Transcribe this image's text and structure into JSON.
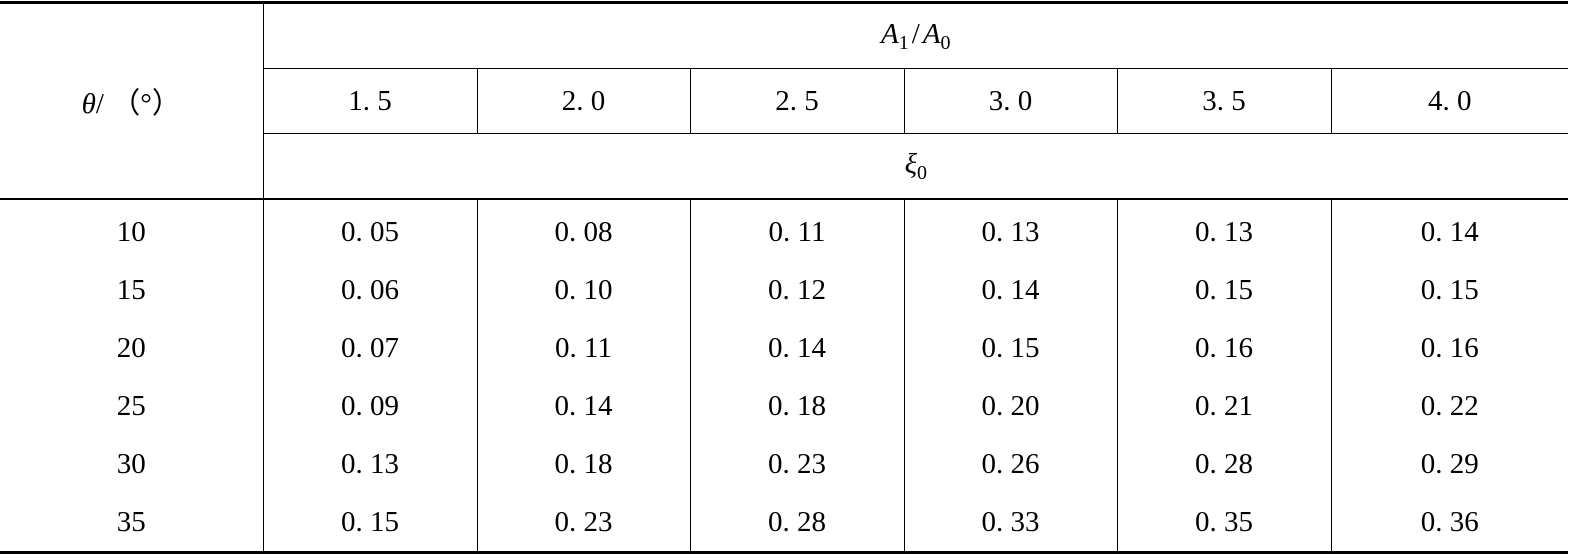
{
  "table": {
    "row_header": {
      "symbol": "θ",
      "unit": "/ （°）"
    },
    "group_header": {
      "numerator_symbol": "A",
      "numerator_sub": "1",
      "slash": "/",
      "denominator_symbol": "A",
      "denominator_sub": "0"
    },
    "ratio_values": [
      "1. 5",
      "2. 0",
      "2. 5",
      "3. 0",
      "3. 5",
      "4. 0"
    ],
    "coefficient_header": {
      "symbol": "ξ",
      "sub": "0"
    },
    "rows": [
      {
        "theta": "10",
        "values": [
          "0. 05",
          "0. 08",
          "0. 11",
          "0. 13",
          "0. 13",
          "0. 14"
        ]
      },
      {
        "theta": "15",
        "values": [
          "0. 06",
          "0. 10",
          "0. 12",
          "0. 14",
          "0. 15",
          "0. 15"
        ]
      },
      {
        "theta": "20",
        "values": [
          "0. 07",
          "0. 11",
          "0. 14",
          "0. 15",
          "0. 16",
          "0. 16"
        ]
      },
      {
        "theta": "25",
        "values": [
          "0. 09",
          "0. 14",
          "0. 18",
          "0. 20",
          "0. 21",
          "0. 22"
        ]
      },
      {
        "theta": "30",
        "values": [
          "0. 13",
          "0. 18",
          "0. 23",
          "0. 26",
          "0. 28",
          "0. 29"
        ]
      },
      {
        "theta": "35",
        "values": [
          "0. 15",
          "0. 23",
          "0. 28",
          "0. 33",
          "0. 35",
          "0. 36"
        ]
      }
    ]
  }
}
